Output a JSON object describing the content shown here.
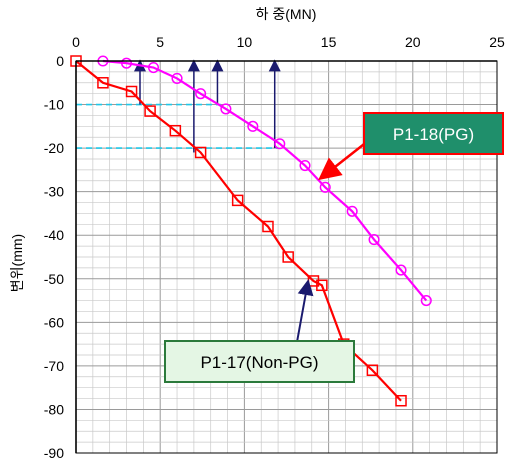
{
  "chart_data": {
    "type": "line",
    "xlabel": "하 중(MN)",
    "ylabel": "변위(mm)",
    "xlim": [
      0,
      25
    ],
    "ylim": [
      -90,
      0
    ],
    "x_ticks": [
      0,
      5,
      10,
      15,
      20,
      25
    ],
    "y_ticks": [
      0,
      -10,
      -20,
      -30,
      -40,
      -50,
      -60,
      -70,
      -80,
      -90
    ],
    "x_tick_labels": [
      "0",
      "5",
      "10",
      "15",
      "20",
      "25"
    ],
    "y_tick_labels": [
      "0",
      "-10",
      "-20",
      "-30",
      "-40",
      "-50",
      "-60",
      "-70",
      "-80",
      "-90"
    ],
    "grid": true,
    "reference_lines_y": [
      -10,
      -20
    ],
    "load_arrows_x": [
      3.8,
      7.0,
      8.4,
      11.8
    ],
    "series": [
      {
        "name": "P1-17(Non-PG)",
        "color": "#ff0000",
        "marker": "square",
        "x": [
          0,
          1.6,
          3.3,
          4.4,
          5.9,
          7.4,
          9.6,
          11.4,
          12.6,
          14.1,
          14.6,
          15.9,
          17.6,
          19.3
        ],
        "y": [
          0,
          -5,
          -7,
          -11.5,
          -16,
          -21,
          -32,
          -38,
          -45,
          -50.5,
          -51.5,
          -65,
          -71,
          -78
        ]
      },
      {
        "name": "P1-18(PG)",
        "color": "#ff00ff",
        "marker": "circle",
        "x": [
          1.6,
          3.0,
          4.6,
          6.0,
          7.4,
          8.9,
          10.5,
          12.1,
          13.6,
          14.8,
          16.4,
          17.7,
          19.3,
          20.8
        ],
        "y": [
          0,
          -0.5,
          -1.5,
          -4,
          -7.5,
          -11,
          -15,
          -19,
          -24,
          -29,
          -34.5,
          -41,
          -48,
          -55
        ]
      }
    ],
    "annotations": [
      {
        "text": "P1-18(PG)",
        "series": 1
      },
      {
        "text": "P1-17(Non-PG)",
        "series": 0
      }
    ]
  }
}
